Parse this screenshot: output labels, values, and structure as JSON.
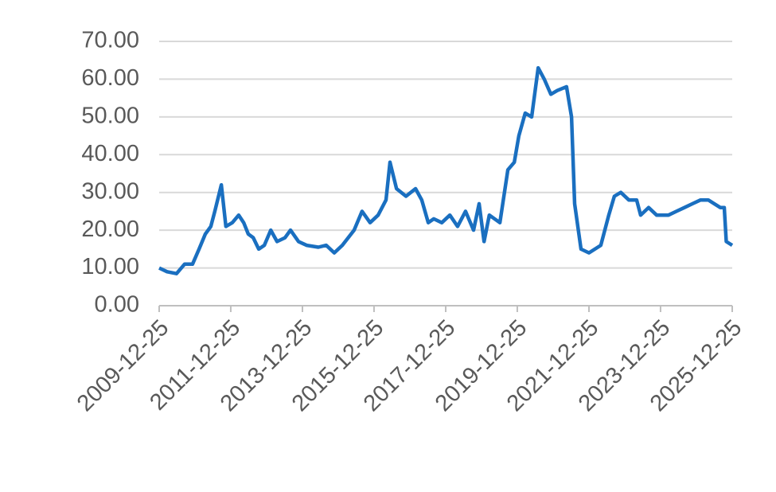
{
  "chart_data": {
    "type": "line",
    "x": [
      "2009-12-25",
      "2010-03-15",
      "2010-06-20",
      "2010-09-10",
      "2010-11-30",
      "2011-02-05",
      "2011-04-10",
      "2011-06-05",
      "2011-07-15",
      "2011-09-20",
      "2011-11-05",
      "2012-01-10",
      "2012-03-15",
      "2012-05-05",
      "2012-06-20",
      "2012-08-10",
      "2012-10-05",
      "2012-12-01",
      "2013-02-05",
      "2013-04-10",
      "2013-06-30",
      "2013-08-25",
      "2013-11-15",
      "2014-02-05",
      "2014-06-05",
      "2014-08-25",
      "2014-11-15",
      "2015-02-05",
      "2015-06-05",
      "2015-08-25",
      "2015-11-15",
      "2016-02-05",
      "2016-04-25",
      "2016-06-05",
      "2016-08-10",
      "2016-11-15",
      "2017-02-20",
      "2017-04-25",
      "2017-06-30",
      "2017-08-25",
      "2017-11-15",
      "2018-02-05",
      "2018-04-25",
      "2018-07-15",
      "2018-10-05",
      "2018-12-01",
      "2019-01-20",
      "2019-03-15",
      "2019-07-01",
      "2019-09-20",
      "2019-11-25",
      "2020-01-10",
      "2020-03-15",
      "2020-05-20",
      "2020-07-25",
      "2020-09-25",
      "2020-12-01",
      "2021-02-05",
      "2021-05-10",
      "2021-06-30",
      "2021-08-01",
      "2021-10-05",
      "2021-12-25",
      "2022-04-25",
      "2022-07-15",
      "2022-09-10",
      "2022-11-15",
      "2023-02-05",
      "2023-04-25",
      "2023-06-05",
      "2023-08-25",
      "2023-11-15",
      "2024-03-15",
      "2024-06-05",
      "2024-08-25",
      "2024-11-15",
      "2025-02-05",
      "2025-04-25",
      "2025-08-25",
      "2025-10-05",
      "2025-10-25",
      "2025-12-25"
    ],
    "series": [
      {
        "color": "#1a6fc0",
        "values": [
          10,
          9,
          8.5,
          11,
          11,
          15,
          19,
          21,
          25,
          32,
          21,
          22,
          24,
          22,
          19,
          18,
          15,
          16,
          20,
          17,
          18,
          20,
          17,
          16,
          15.5,
          16,
          14,
          16,
          20,
          25,
          22,
          24,
          28,
          38,
          31,
          29,
          31,
          28,
          22,
          23,
          22,
          24,
          21,
          25,
          20,
          27,
          17,
          24,
          22,
          36,
          38,
          45,
          51,
          50,
          63,
          60,
          56,
          57,
          58,
          50,
          27,
          15,
          14,
          16,
          24,
          29,
          30,
          28,
          28,
          24,
          26,
          24,
          24,
          25,
          26,
          27,
          28,
          28,
          26,
          26,
          17,
          16
        ]
      }
    ],
    "xlim": [
      "2009-12-25",
      "2025-12-25"
    ],
    "xticks": [
      "2009-12-25",
      "2011-12-25",
      "2013-12-25",
      "2015-12-25",
      "2017-12-25",
      "2019-12-25",
      "2021-12-25",
      "2023-12-25",
      "2025-12-25"
    ],
    "ylim": [
      0,
      70
    ],
    "yticks": [
      {
        "value": 0,
        "label": "0.00"
      },
      {
        "value": 10,
        "label": "10.00"
      },
      {
        "value": 20,
        "label": "20.00"
      },
      {
        "value": 30,
        "label": "30.00"
      },
      {
        "value": 40,
        "label": "40.00"
      },
      {
        "value": 50,
        "label": "50.00"
      },
      {
        "value": 60,
        "label": "60.00"
      },
      {
        "value": 70,
        "label": "70.00"
      }
    ],
    "grid": true
  }
}
